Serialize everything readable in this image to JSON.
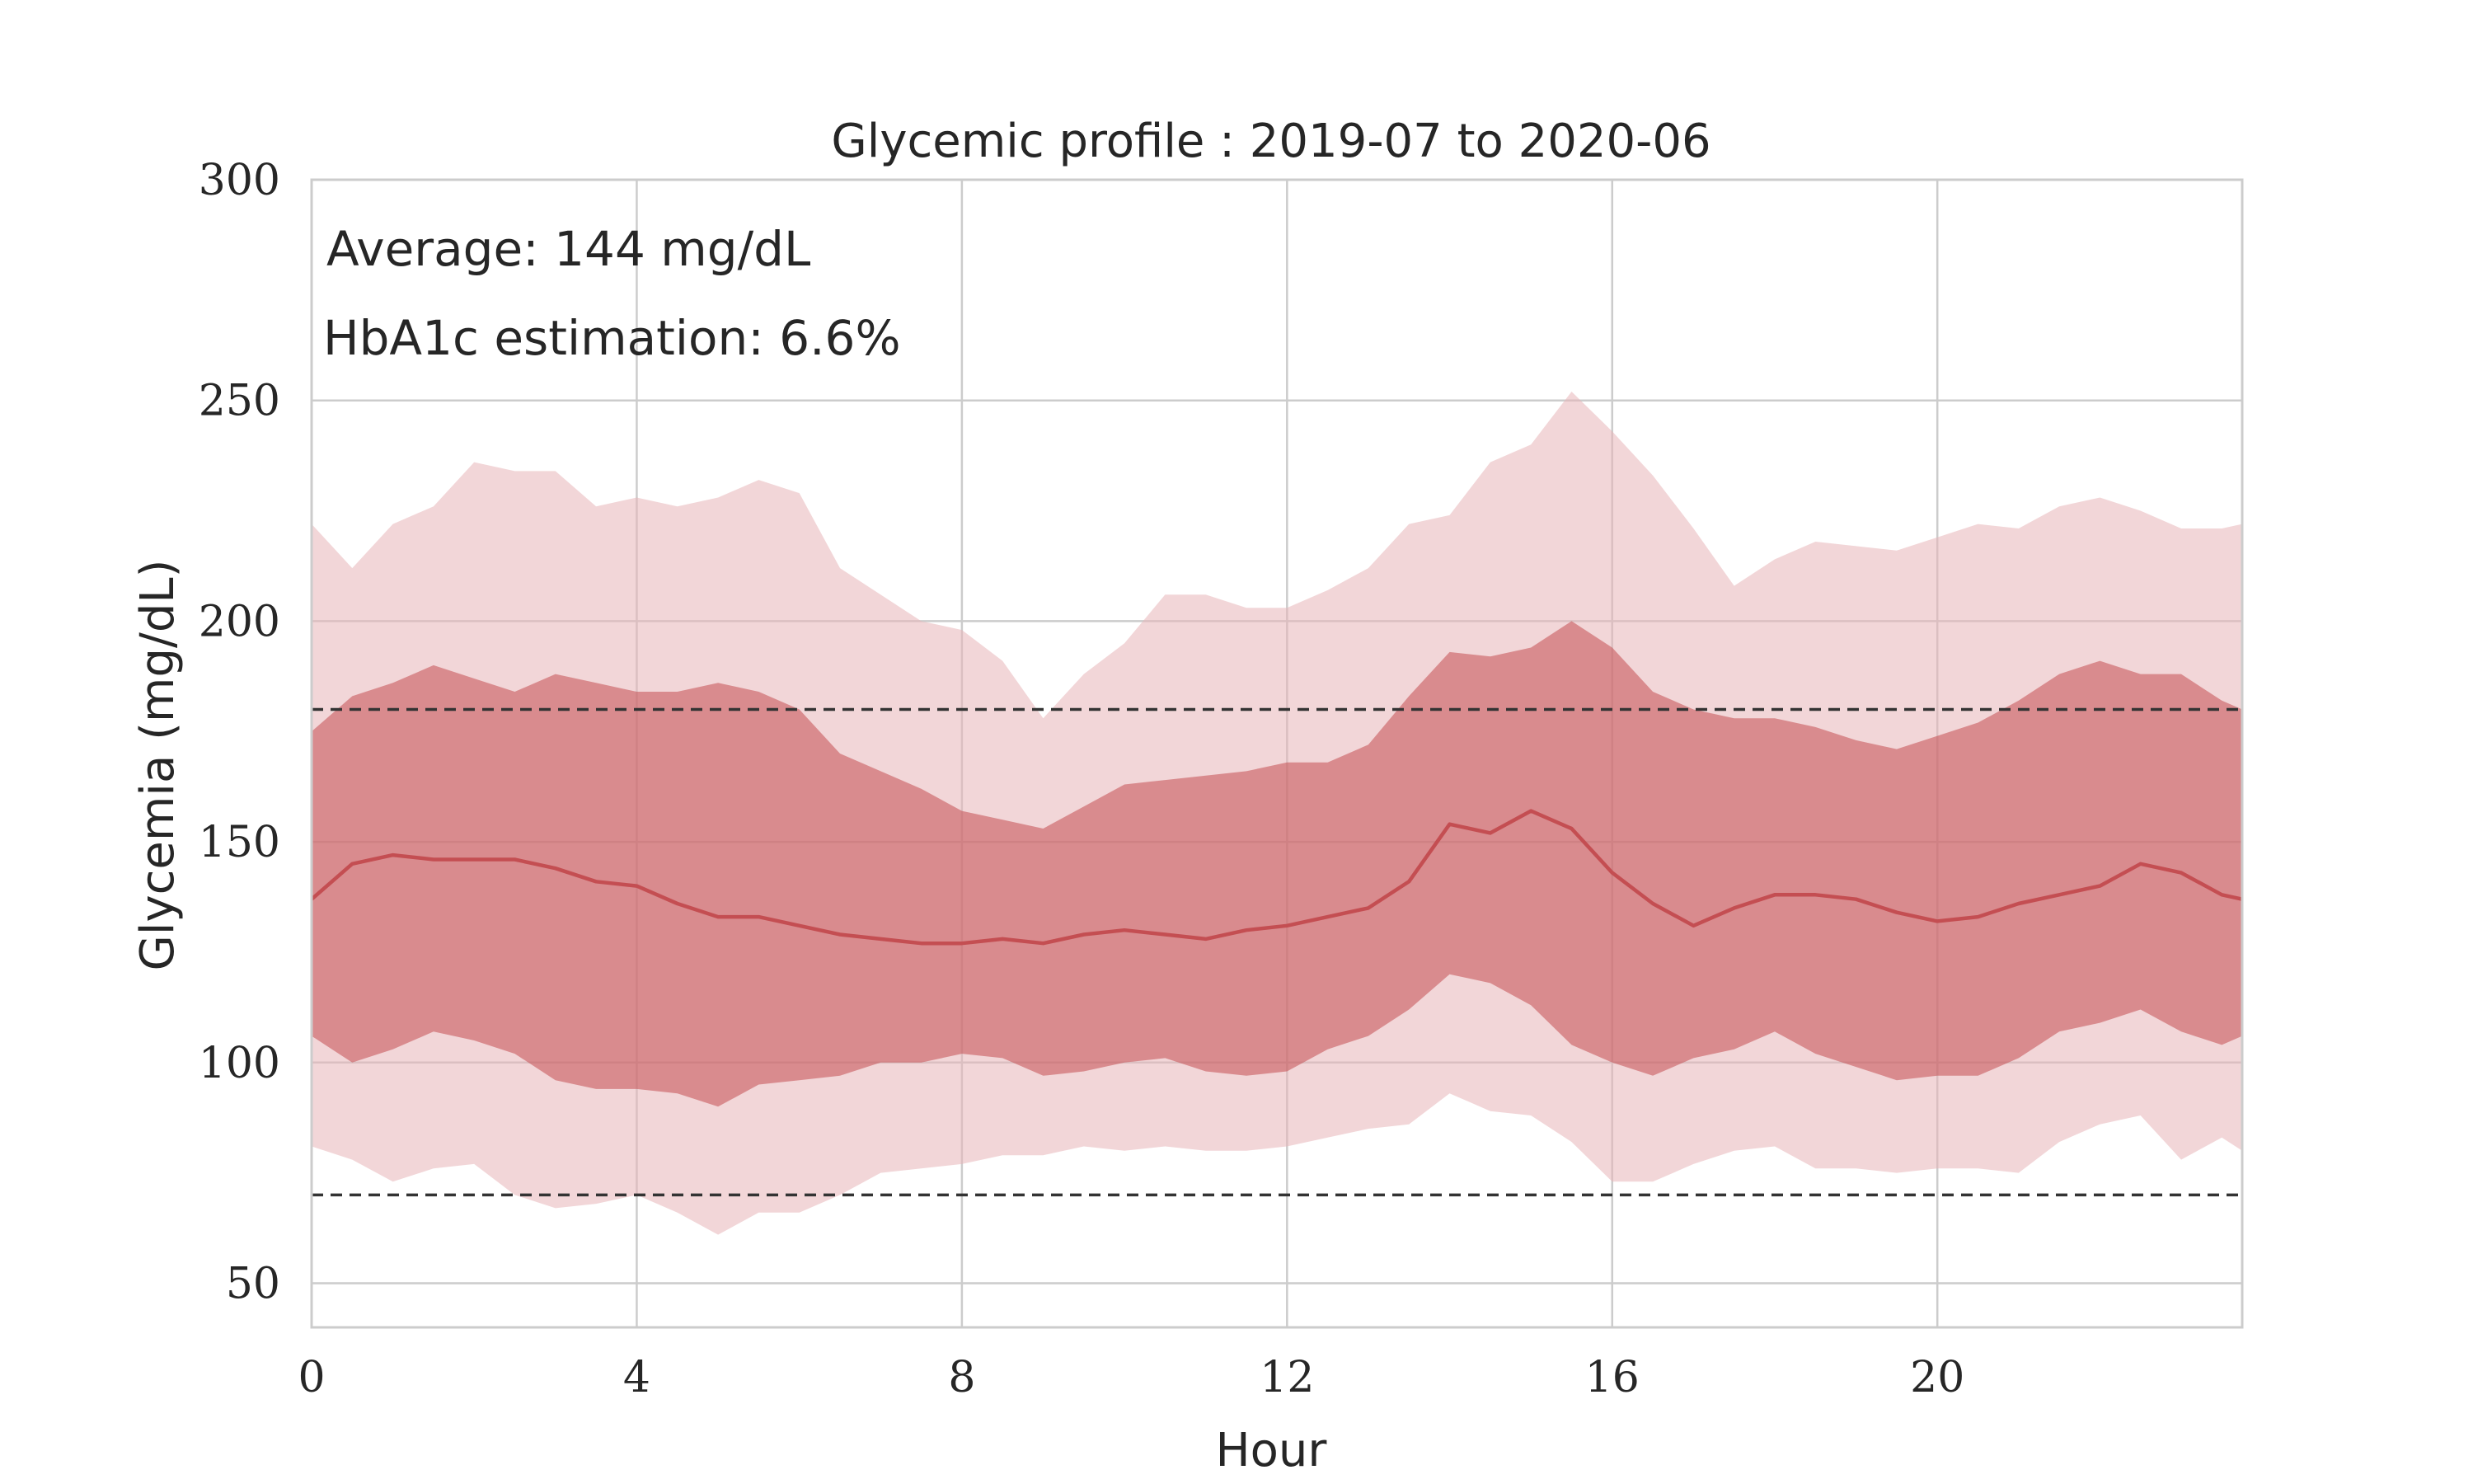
{
  "chart_data": {
    "type": "area",
    "title": "Glycemic profile : 2019-07 to 2020-06",
    "xlabel": "Hour",
    "ylabel": "Glycemia (mg/dL)",
    "xlim": [
      0,
      23.75
    ],
    "ylim": [
      40,
      300
    ],
    "xticks": [
      0,
      4,
      8,
      12,
      16,
      20
    ],
    "yticks": [
      50,
      100,
      150,
      200,
      250,
      300
    ],
    "grid": true,
    "annotations": [
      "Average: 144 mg/dL",
      "HbA1c estimation: 6.6%"
    ],
    "reference_lines": [
      180,
      70
    ],
    "colors": {
      "median": "#c44e52",
      "inner_band": "#c44e52",
      "outer_band": "#e8b4b8",
      "reference": "#333333"
    },
    "x": [
      0,
      0.5,
      1,
      1.5,
      2,
      2.5,
      3,
      3.5,
      4,
      4.5,
      5,
      5.5,
      6,
      6.5,
      7,
      7.5,
      8,
      8.5,
      9,
      9.5,
      10,
      10.5,
      11,
      11.5,
      12,
      12.5,
      13,
      13.5,
      14,
      14.5,
      15,
      15.5,
      16,
      16.5,
      17,
      17.5,
      18,
      18.5,
      19,
      19.5,
      20,
      20.5,
      21,
      21.5,
      22,
      22.5,
      23,
      23.5,
      23.75
    ],
    "series": [
      {
        "name": "p10",
        "values": [
          81,
          78,
          73,
          76,
          77,
          70,
          67,
          68,
          70,
          66,
          61,
          66,
          66,
          70,
          75,
          76,
          77,
          79,
          79,
          81,
          80,
          81,
          80,
          80,
          81,
          83,
          85,
          86,
          93,
          89,
          88,
          82,
          73,
          73,
          77,
          80,
          81,
          76,
          76,
          75,
          76,
          76,
          75,
          82,
          86,
          88,
          78,
          83,
          80
        ]
      },
      {
        "name": "p25",
        "values": [
          106,
          100,
          103,
          107,
          105,
          102,
          96,
          94,
          94,
          93,
          90,
          95,
          96,
          97,
          100,
          100,
          102,
          101,
          97,
          98,
          100,
          101,
          98,
          97,
          98,
          103,
          106,
          112,
          120,
          118,
          113,
          104,
          100,
          97,
          101,
          103,
          107,
          102,
          99,
          96,
          97,
          97,
          101,
          107,
          109,
          112,
          107,
          104,
          106
        ]
      },
      {
        "name": "median",
        "values": [
          137,
          145,
          147,
          146,
          146,
          146,
          144,
          141,
          140,
          136,
          133,
          133,
          131,
          129,
          128,
          127,
          127,
          128,
          127,
          129,
          130,
          129,
          128,
          130,
          131,
          133,
          135,
          141,
          154,
          152,
          157,
          153,
          143,
          136,
          131,
          135,
          138,
          138,
          137,
          134,
          132,
          133,
          136,
          138,
          140,
          145,
          143,
          138,
          137
        ]
      },
      {
        "name": "p75",
        "values": [
          175,
          183,
          186,
          190,
          187,
          184,
          188,
          186,
          184,
          184,
          186,
          184,
          180,
          170,
          166,
          162,
          157,
          155,
          153,
          158,
          163,
          164,
          165,
          166,
          168,
          168,
          172,
          183,
          193,
          192,
          194,
          200,
          194,
          184,
          180,
          178,
          178,
          176,
          173,
          171,
          174,
          177,
          182,
          188,
          191,
          188,
          188,
          182,
          180
        ]
      },
      {
        "name": "p90",
        "values": [
          222,
          212,
          222,
          226,
          236,
          234,
          234,
          226,
          228,
          226,
          228,
          232,
          229,
          212,
          206,
          200,
          198,
          191,
          178,
          188,
          195,
          206,
          206,
          203,
          203,
          207,
          212,
          222,
          224,
          236,
          240,
          252,
          243,
          233,
          221,
          208,
          214,
          218,
          217,
          216,
          219,
          222,
          221,
          226,
          228,
          225,
          221,
          221,
          222
        ]
      }
    ]
  }
}
